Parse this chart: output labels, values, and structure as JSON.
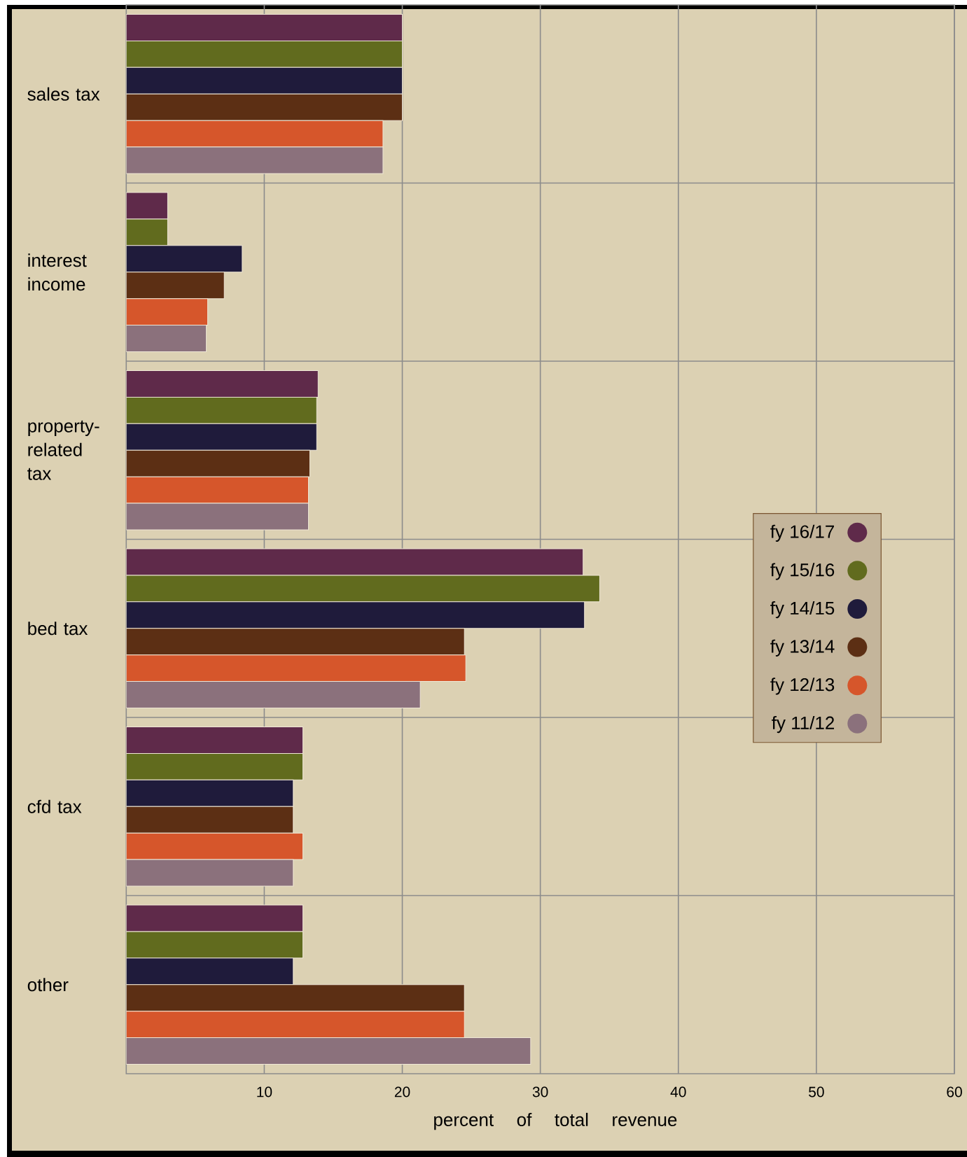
{
  "chart_data": {
    "type": "bar",
    "orientation": "horizontal",
    "xlabel": "percent of total revenue",
    "categories": [
      "sales tax",
      "interest income",
      "property-related tax",
      "bed tax",
      "cfd tax",
      "other"
    ],
    "series": [
      {
        "name": "fy 16/17",
        "color": "#5f2a4a",
        "values": [
          20,
          3.0,
          13.9,
          33.1,
          12.8,
          12.8
        ]
      },
      {
        "name": "fy 15/16",
        "color": "#616b1e",
        "values": [
          20,
          3.0,
          13.8,
          34.3,
          12.8,
          12.8
        ]
      },
      {
        "name": "fy 14/15",
        "color": "#1f1b3b",
        "values": [
          20,
          8.4,
          13.8,
          33.2,
          12.1,
          12.1
        ]
      },
      {
        "name": "fy 13/14",
        "color": "#5c2f14",
        "values": [
          20,
          7.1,
          13.3,
          24.5,
          12.1,
          24.5
        ]
      },
      {
        "name": "fy 12/13",
        "color": "#d6562b",
        "values": [
          18.6,
          5.9,
          13.2,
          24.6,
          12.8,
          24.5
        ]
      },
      {
        "name": "fy 11/12",
        "color": "#8b717c",
        "values": [
          18.6,
          5.8,
          13.2,
          21.3,
          12.1,
          29.3
        ]
      }
    ],
    "xlim": [
      0,
      60
    ],
    "xticks": [
      10,
      20,
      30,
      40,
      50,
      60
    ],
    "grid": true,
    "legend": "right"
  }
}
